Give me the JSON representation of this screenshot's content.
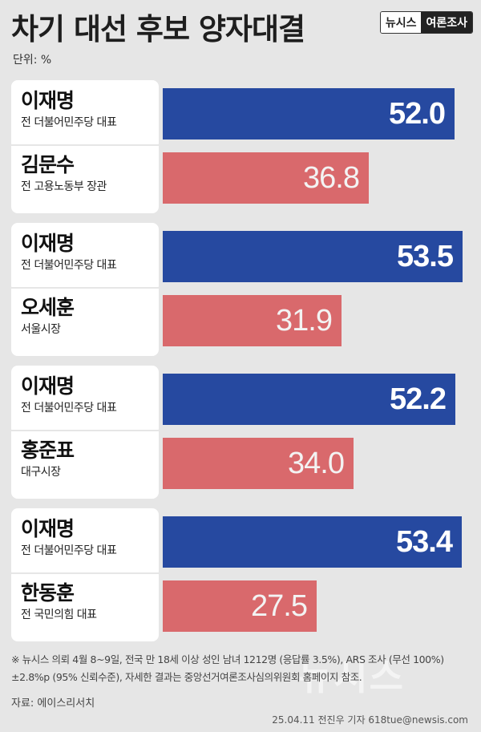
{
  "header": {
    "title": "차기 대선 후보 양자대결",
    "brand_left": "뉴시스",
    "brand_right": "여론조사",
    "unit": "단위: %"
  },
  "chart_data": {
    "type": "bar",
    "orientation": "horizontal",
    "unit": "%",
    "xlim": [
      0,
      53.5
    ],
    "colors": {
      "lee": "#2649a0",
      "opponent": "#d9696c"
    },
    "matchups": [
      {
        "candidates": [
          {
            "name": "이재명",
            "role": "전 더불어민주당 대표",
            "value": 52.0
          },
          {
            "name": "김문수",
            "role": "전 고용노동부 장관",
            "value": 36.8
          }
        ]
      },
      {
        "candidates": [
          {
            "name": "이재명",
            "role": "전 더불어민주당 대표",
            "value": 53.5
          },
          {
            "name": "오세훈",
            "role": "서울시장",
            "value": 31.9
          }
        ]
      },
      {
        "candidates": [
          {
            "name": "이재명",
            "role": "전 더불어민주당 대표",
            "value": 52.2
          },
          {
            "name": "홍준표",
            "role": "대구시장",
            "value": 34.0
          }
        ]
      },
      {
        "candidates": [
          {
            "name": "이재명",
            "role": "전 더불어민주당 대표",
            "value": 53.4
          },
          {
            "name": "한동훈",
            "role": "전 국민의힘 대표",
            "value": 27.5
          }
        ]
      }
    ]
  },
  "footer": {
    "note": "※ 뉴시스 의뢰 4월 8~9일, 전국 만 18세 이상 성인 남녀 1212명 (응답률 3.5%), ARS 조사 (무선 100%) ±2.8%p (95% 신뢰수준), 자세한 결과는 중앙선거여론조사심의위원회 홈페이지 참조.",
    "source": "자료: 에이스리서치",
    "credit": "25.04.11 전진우 기자 618tue@newsis.com",
    "watermark": "뉴시스"
  }
}
